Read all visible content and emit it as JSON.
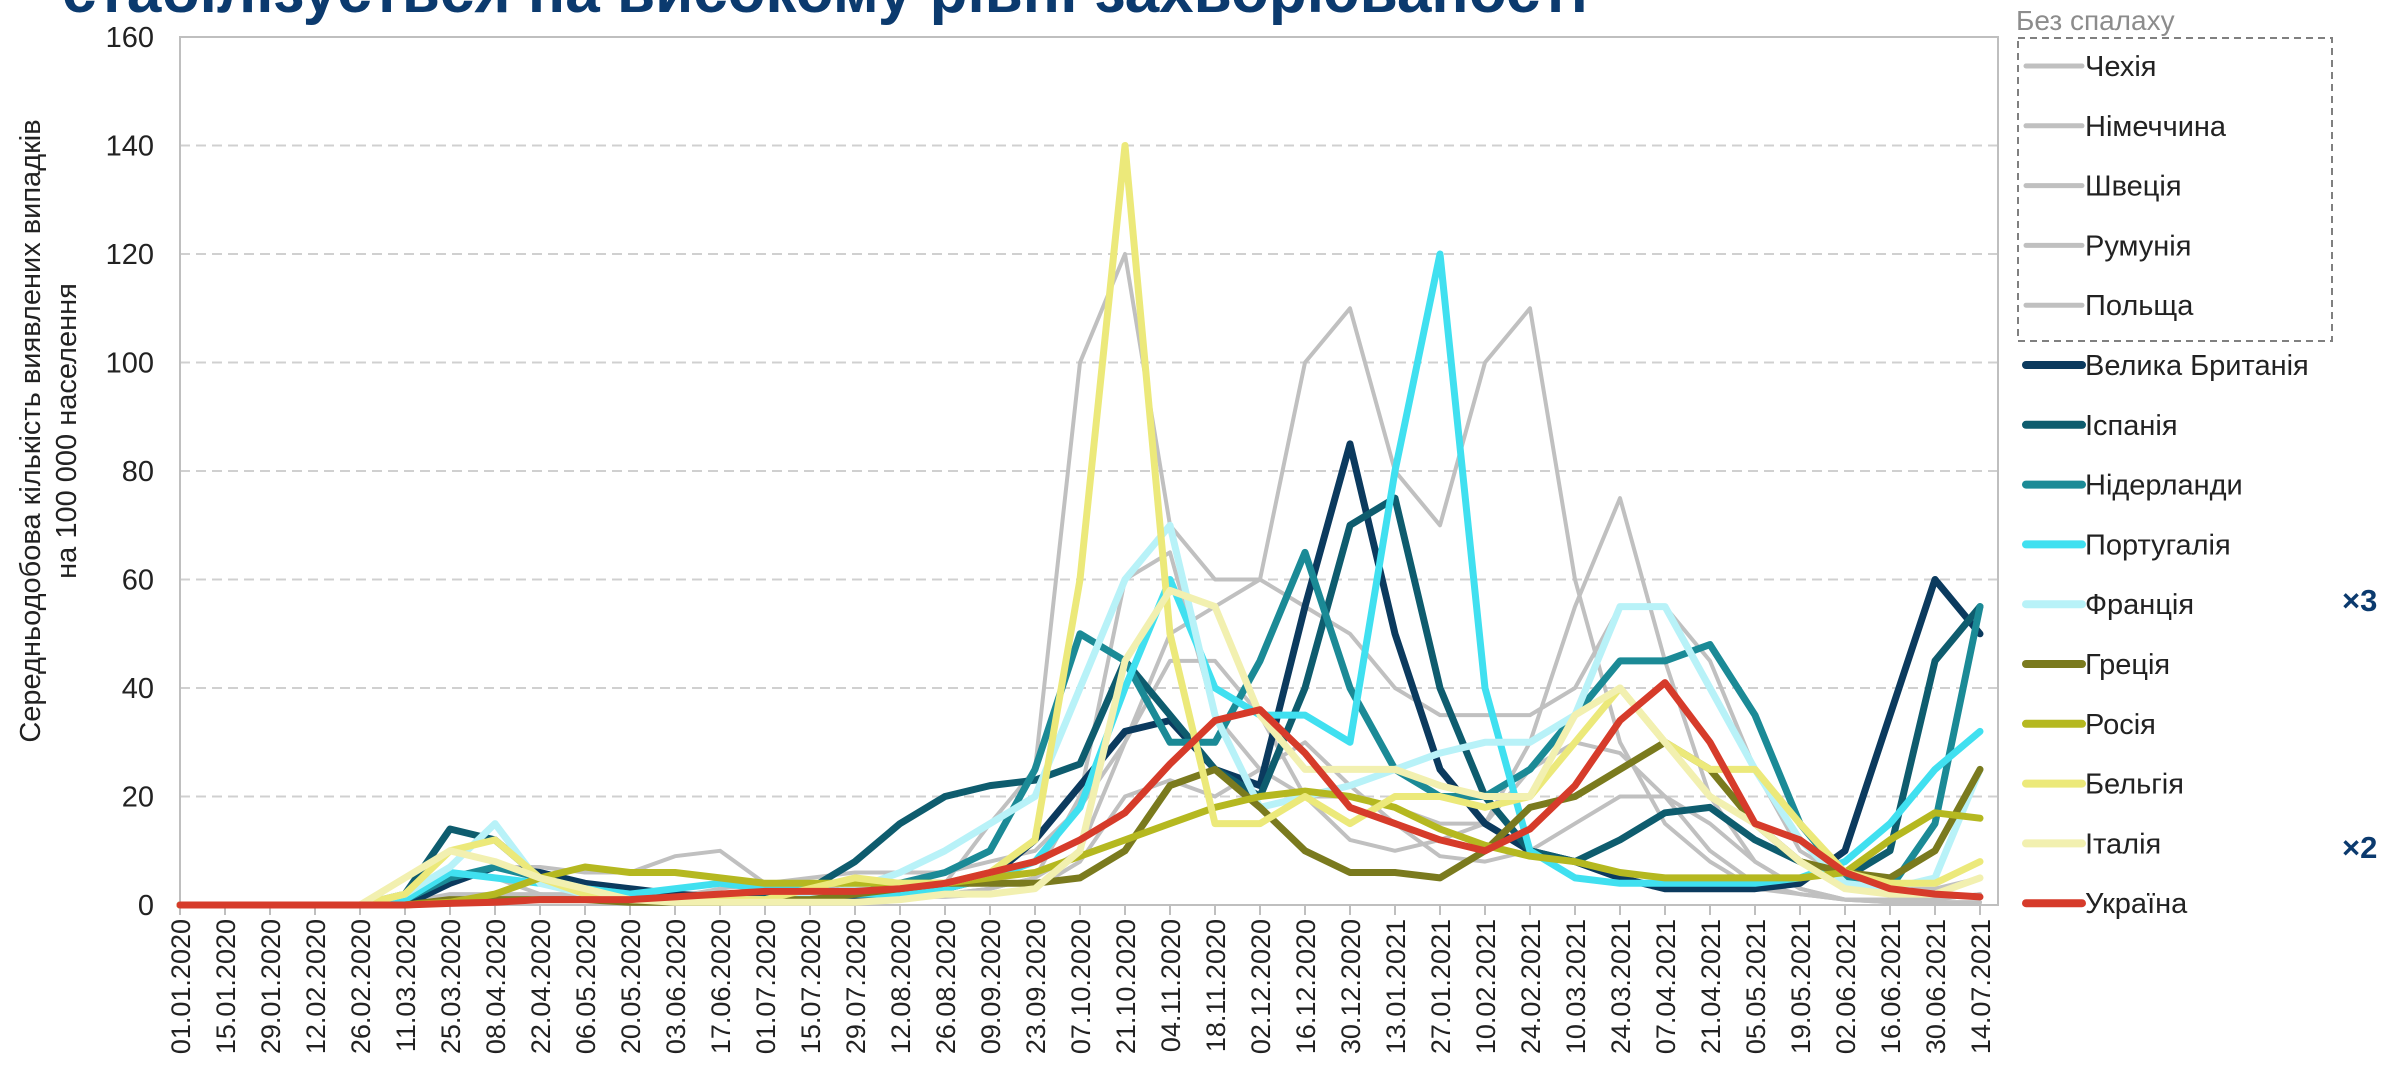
{
  "chart_data": {
    "type": "line",
    "title": "стабілізується на високому рівні захворюваності",
    "ylabel": [
      "Середньодобова кількість виявлених випадків",
      "на 100 000 населення"
    ],
    "legend_title": "Без спалаху",
    "annotations": [
      "×3",
      "×2"
    ],
    "categories": [
      "01.01.2020",
      "15.01.2020",
      "29.01.2020",
      "12.02.2020",
      "26.02.2020",
      "11.03.2020",
      "25.03.2020",
      "08.04.2020",
      "22.04.2020",
      "06.05.2020",
      "20.05.2020",
      "03.06.2020",
      "17.06.2020",
      "01.07.2020",
      "15.07.2020",
      "29.07.2020",
      "12.08.2020",
      "26.08.2020",
      "09.09.2020",
      "23.09.2020",
      "07.10.2020",
      "21.10.2020",
      "04.11.2020",
      "18.11.2020",
      "02.12.2020",
      "16.12.2020",
      "30.12.2020",
      "13.01.2021",
      "27.01.2021",
      "10.02.2021",
      "24.02.2021",
      "10.03.2021",
      "24.03.2021",
      "07.04.2021",
      "21.04.2021",
      "05.05.2021",
      "19.05.2021",
      "02.06.2021",
      "16.06.2021",
      "30.06.2021",
      "14.07.2021"
    ],
    "ylim": [
      0,
      160
    ],
    "yticks": [
      0,
      20,
      40,
      60,
      80,
      100,
      120,
      140,
      160
    ],
    "grid": true,
    "series": [
      {
        "name": "Чехія",
        "color": "#c0c0c0",
        "values": [
          0,
          0,
          0,
          0,
          0,
          0.5,
          2,
          2,
          1,
          1,
          1,
          1,
          2,
          1,
          1,
          2,
          2,
          4,
          15,
          25,
          100,
          120,
          70,
          60,
          60,
          100,
          110,
          80,
          70,
          100,
          110,
          60,
          30,
          15,
          8,
          3,
          2,
          1,
          1,
          1,
          2
        ]
      },
      {
        "name": "Німеччина",
        "color": "#c0c0c0",
        "values": [
          0,
          0,
          0,
          0,
          0,
          2,
          6,
          5,
          2,
          1,
          0.5,
          0.5,
          0.5,
          0.5,
          1,
          1,
          1.5,
          1.5,
          2,
          3,
          8,
          20,
          23,
          20,
          25,
          30,
          22,
          15,
          9,
          8,
          10,
          15,
          20,
          20,
          15,
          8,
          3,
          1,
          1,
          1,
          2
        ]
      },
      {
        "name": "Швеція",
        "color": "#c0c0c0",
        "values": [
          0,
          0,
          0,
          0,
          0,
          1,
          4,
          7,
          7,
          6,
          6,
          9,
          10,
          4,
          3,
          3,
          2,
          2,
          3,
          5,
          10,
          30,
          50,
          55,
          60,
          55,
          50,
          40,
          35,
          35,
          35,
          40,
          55,
          55,
          45,
          25,
          10,
          5,
          3,
          3,
          5
        ]
      },
      {
        "name": "Румунія",
        "color": "#c0c0c0",
        "values": [
          0,
          0,
          0,
          0,
          0,
          0.5,
          1,
          2,
          2,
          2,
          1.5,
          1.5,
          3,
          4,
          5,
          6,
          6,
          6,
          8,
          10,
          18,
          30,
          45,
          45,
          35,
          20,
          12,
          10,
          12,
          15,
          25,
          30,
          28,
          20,
          10,
          4,
          2,
          1,
          0.5,
          0.5,
          0.5
        ]
      },
      {
        "name": "Польща",
        "color": "#c0c0c0",
        "values": [
          0,
          0,
          0,
          0,
          0,
          0.5,
          1,
          1,
          1,
          1,
          1,
          1,
          1,
          1,
          1,
          1.5,
          2,
          2,
          3,
          5,
          20,
          60,
          65,
          35,
          25,
          20,
          20,
          18,
          15,
          15,
          30,
          55,
          75,
          45,
          20,
          8,
          3,
          1,
          0.5,
          0.5,
          0.5
        ]
      },
      {
        "name": "Велика Британія",
        "color": "#0b3a5e",
        "values": [
          0,
          0,
          0,
          0,
          0,
          0,
          4,
          7,
          6,
          4,
          3,
          2,
          1.5,
          1,
          1,
          1.5,
          2,
          3,
          5,
          12,
          22,
          32,
          34,
          25,
          22,
          55,
          85,
          50,
          25,
          15,
          10,
          8,
          5,
          3,
          3,
          3,
          4,
          10,
          35,
          60,
          50
        ]
      },
      {
        "name": "Іспанія",
        "color": "#0e5c6e",
        "values": [
          0,
          0,
          0,
          0,
          0,
          2,
          14,
          12,
          5,
          2,
          1,
          1,
          1,
          2,
          3,
          8,
          15,
          20,
          22,
          23,
          26,
          45,
          35,
          25,
          20,
          40,
          70,
          75,
          40,
          20,
          10,
          8,
          12,
          17,
          18,
          12,
          8,
          5,
          10,
          45,
          55
        ]
      },
      {
        "name": "Нідерланди",
        "color": "#1b8a96",
        "values": [
          0,
          0,
          0,
          0,
          0,
          1,
          5,
          7,
          5,
          3,
          2,
          1,
          1,
          1,
          2,
          3,
          4,
          6,
          10,
          25,
          50,
          45,
          30,
          30,
          45,
          65,
          40,
          25,
          20,
          20,
          25,
          35,
          45,
          45,
          48,
          35,
          15,
          5,
          3,
          15,
          55
        ]
      },
      {
        "name": "Португалія",
        "color": "#40e0f0",
        "values": [
          0,
          0,
          0,
          0,
          0,
          1,
          6,
          5,
          4,
          3,
          2,
          3,
          4,
          3,
          3,
          2,
          2,
          3,
          5,
          8,
          18,
          40,
          60,
          40,
          35,
          35,
          30,
          80,
          120,
          40,
          10,
          5,
          4,
          4,
          4,
          4,
          5,
          8,
          15,
          25,
          32
        ]
      },
      {
        "name": "Франція",
        "color": "#b8f2f8",
        "values": [
          0,
          0,
          0,
          0,
          0,
          2,
          7,
          15,
          4,
          2,
          1,
          1,
          1,
          1,
          2,
          3,
          6,
          10,
          15,
          20,
          40,
          60,
          70,
          35,
          18,
          20,
          22,
          25,
          28,
          30,
          30,
          35,
          55,
          55,
          40,
          25,
          12,
          4,
          3,
          5,
          25
        ]
      },
      {
        "name": "Греція",
        "color": "#7a7a1e",
        "values": [
          0,
          0,
          0,
          0,
          0,
          0,
          1,
          1,
          1,
          1,
          0.5,
          0.5,
          0.5,
          1,
          1,
          2,
          3,
          4,
          4,
          4,
          5,
          10,
          22,
          25,
          18,
          10,
          6,
          6,
          5,
          10,
          18,
          20,
          25,
          30,
          25,
          15,
          8,
          6,
          5,
          10,
          25
        ]
      },
      {
        "name": "Росія",
        "color": "#b5b820",
        "values": [
          0,
          0,
          0,
          0,
          0,
          0,
          0.5,
          2,
          5,
          7,
          6,
          6,
          5,
          4,
          4,
          4,
          4,
          4,
          5,
          6,
          9,
          12,
          15,
          18,
          20,
          21,
          20,
          18,
          14,
          11,
          9,
          8,
          6,
          5,
          5,
          5,
          5,
          6,
          12,
          17,
          16
        ]
      },
      {
        "name": "Бельгія",
        "color": "#ece97a",
        "values": [
          0,
          0,
          0,
          0,
          0,
          2,
          10,
          12,
          5,
          2,
          1,
          1,
          1,
          1,
          3,
          5,
          4,
          4,
          6,
          12,
          60,
          140,
          50,
          15,
          15,
          20,
          15,
          20,
          20,
          18,
          20,
          30,
          40,
          30,
          25,
          25,
          15,
          6,
          4,
          4,
          8
        ]
      },
      {
        "name": "Італія",
        "color": "#f2f0b0",
        "values": [
          0,
          0,
          0,
          0,
          0,
          5,
          10,
          8,
          5,
          3,
          1,
          0.5,
          0.5,
          0.5,
          0.5,
          0.5,
          1,
          2,
          2,
          3,
          10,
          45,
          58,
          55,
          35,
          25,
          25,
          25,
          22,
          20,
          20,
          35,
          40,
          30,
          20,
          15,
          8,
          3,
          2,
          2,
          5
        ]
      },
      {
        "name": "Україна",
        "color": "#d63b2a",
        "values": [
          0,
          0,
          0,
          0,
          0,
          0,
          0.3,
          0.5,
          1,
          1,
          1,
          1.5,
          2,
          2.5,
          2.5,
          2.5,
          3,
          4,
          6,
          8,
          12,
          17,
          26,
          34,
          36,
          28,
          18,
          15,
          12,
          10,
          14,
          22,
          34,
          41,
          30,
          15,
          12,
          6,
          3,
          2,
          1.5
        ]
      }
    ]
  }
}
